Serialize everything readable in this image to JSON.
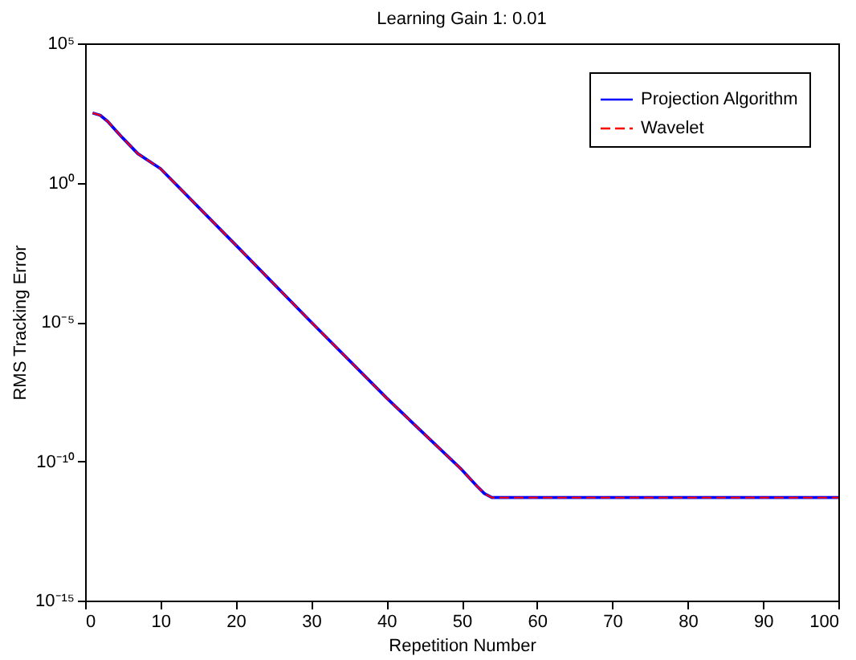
{
  "chart_data": {
    "type": "line",
    "title": "Learning Gain 1: 0.01",
    "xlabel": "Repetition Number",
    "ylabel": "RMS Tracking Error",
    "log": "y",
    "legend": "top right",
    "x": [
      1,
      2,
      3,
      4,
      5,
      7,
      10,
      20,
      30,
      40,
      50,
      52,
      53,
      54,
      55,
      60,
      70,
      80,
      90,
      100
    ],
    "xlim": [
      0,
      100
    ],
    "xticks": [
      0,
      10,
      20,
      30,
      40,
      50,
      60,
      70,
      80,
      90,
      100
    ],
    "ylim": [
      1e-15,
      100000.0
    ],
    "yticks": [
      {
        "value": 1e-15,
        "label": "10⁻¹⁵"
      },
      {
        "value": 1e-10,
        "label": "10⁻¹⁰"
      },
      {
        "value": 1e-05,
        "label": "10⁻⁵"
      },
      {
        "value": 1,
        "label": "10⁰"
      },
      {
        "value": 100000.0,
        "label": "10⁵"
      }
    ],
    "series": [
      {
        "name": "Projection Algorithm",
        "color": "#0000ff",
        "line_style": "solid",
        "values": [
          316,
          263,
          158,
          79,
          40,
          11,
          3.2,
          0.0058,
          1e-05,
          1.9e-08,
          5e-11,
          1.3e-11,
          7e-12,
          5e-12,
          5e-12,
          5e-12,
          5e-12,
          5e-12,
          5e-12,
          5e-12
        ]
      },
      {
        "name": "Wavelet",
        "color": "#ff0000",
        "line_style": "dashed",
        "values": [
          316,
          263,
          158,
          79,
          40,
          11,
          3.2,
          0.0058,
          1e-05,
          1.9e-08,
          5e-11,
          1.3e-11,
          7e-12,
          5e-12,
          5e-12,
          5e-12,
          5e-12,
          5e-12,
          5e-12,
          5e-12
        ]
      }
    ]
  }
}
